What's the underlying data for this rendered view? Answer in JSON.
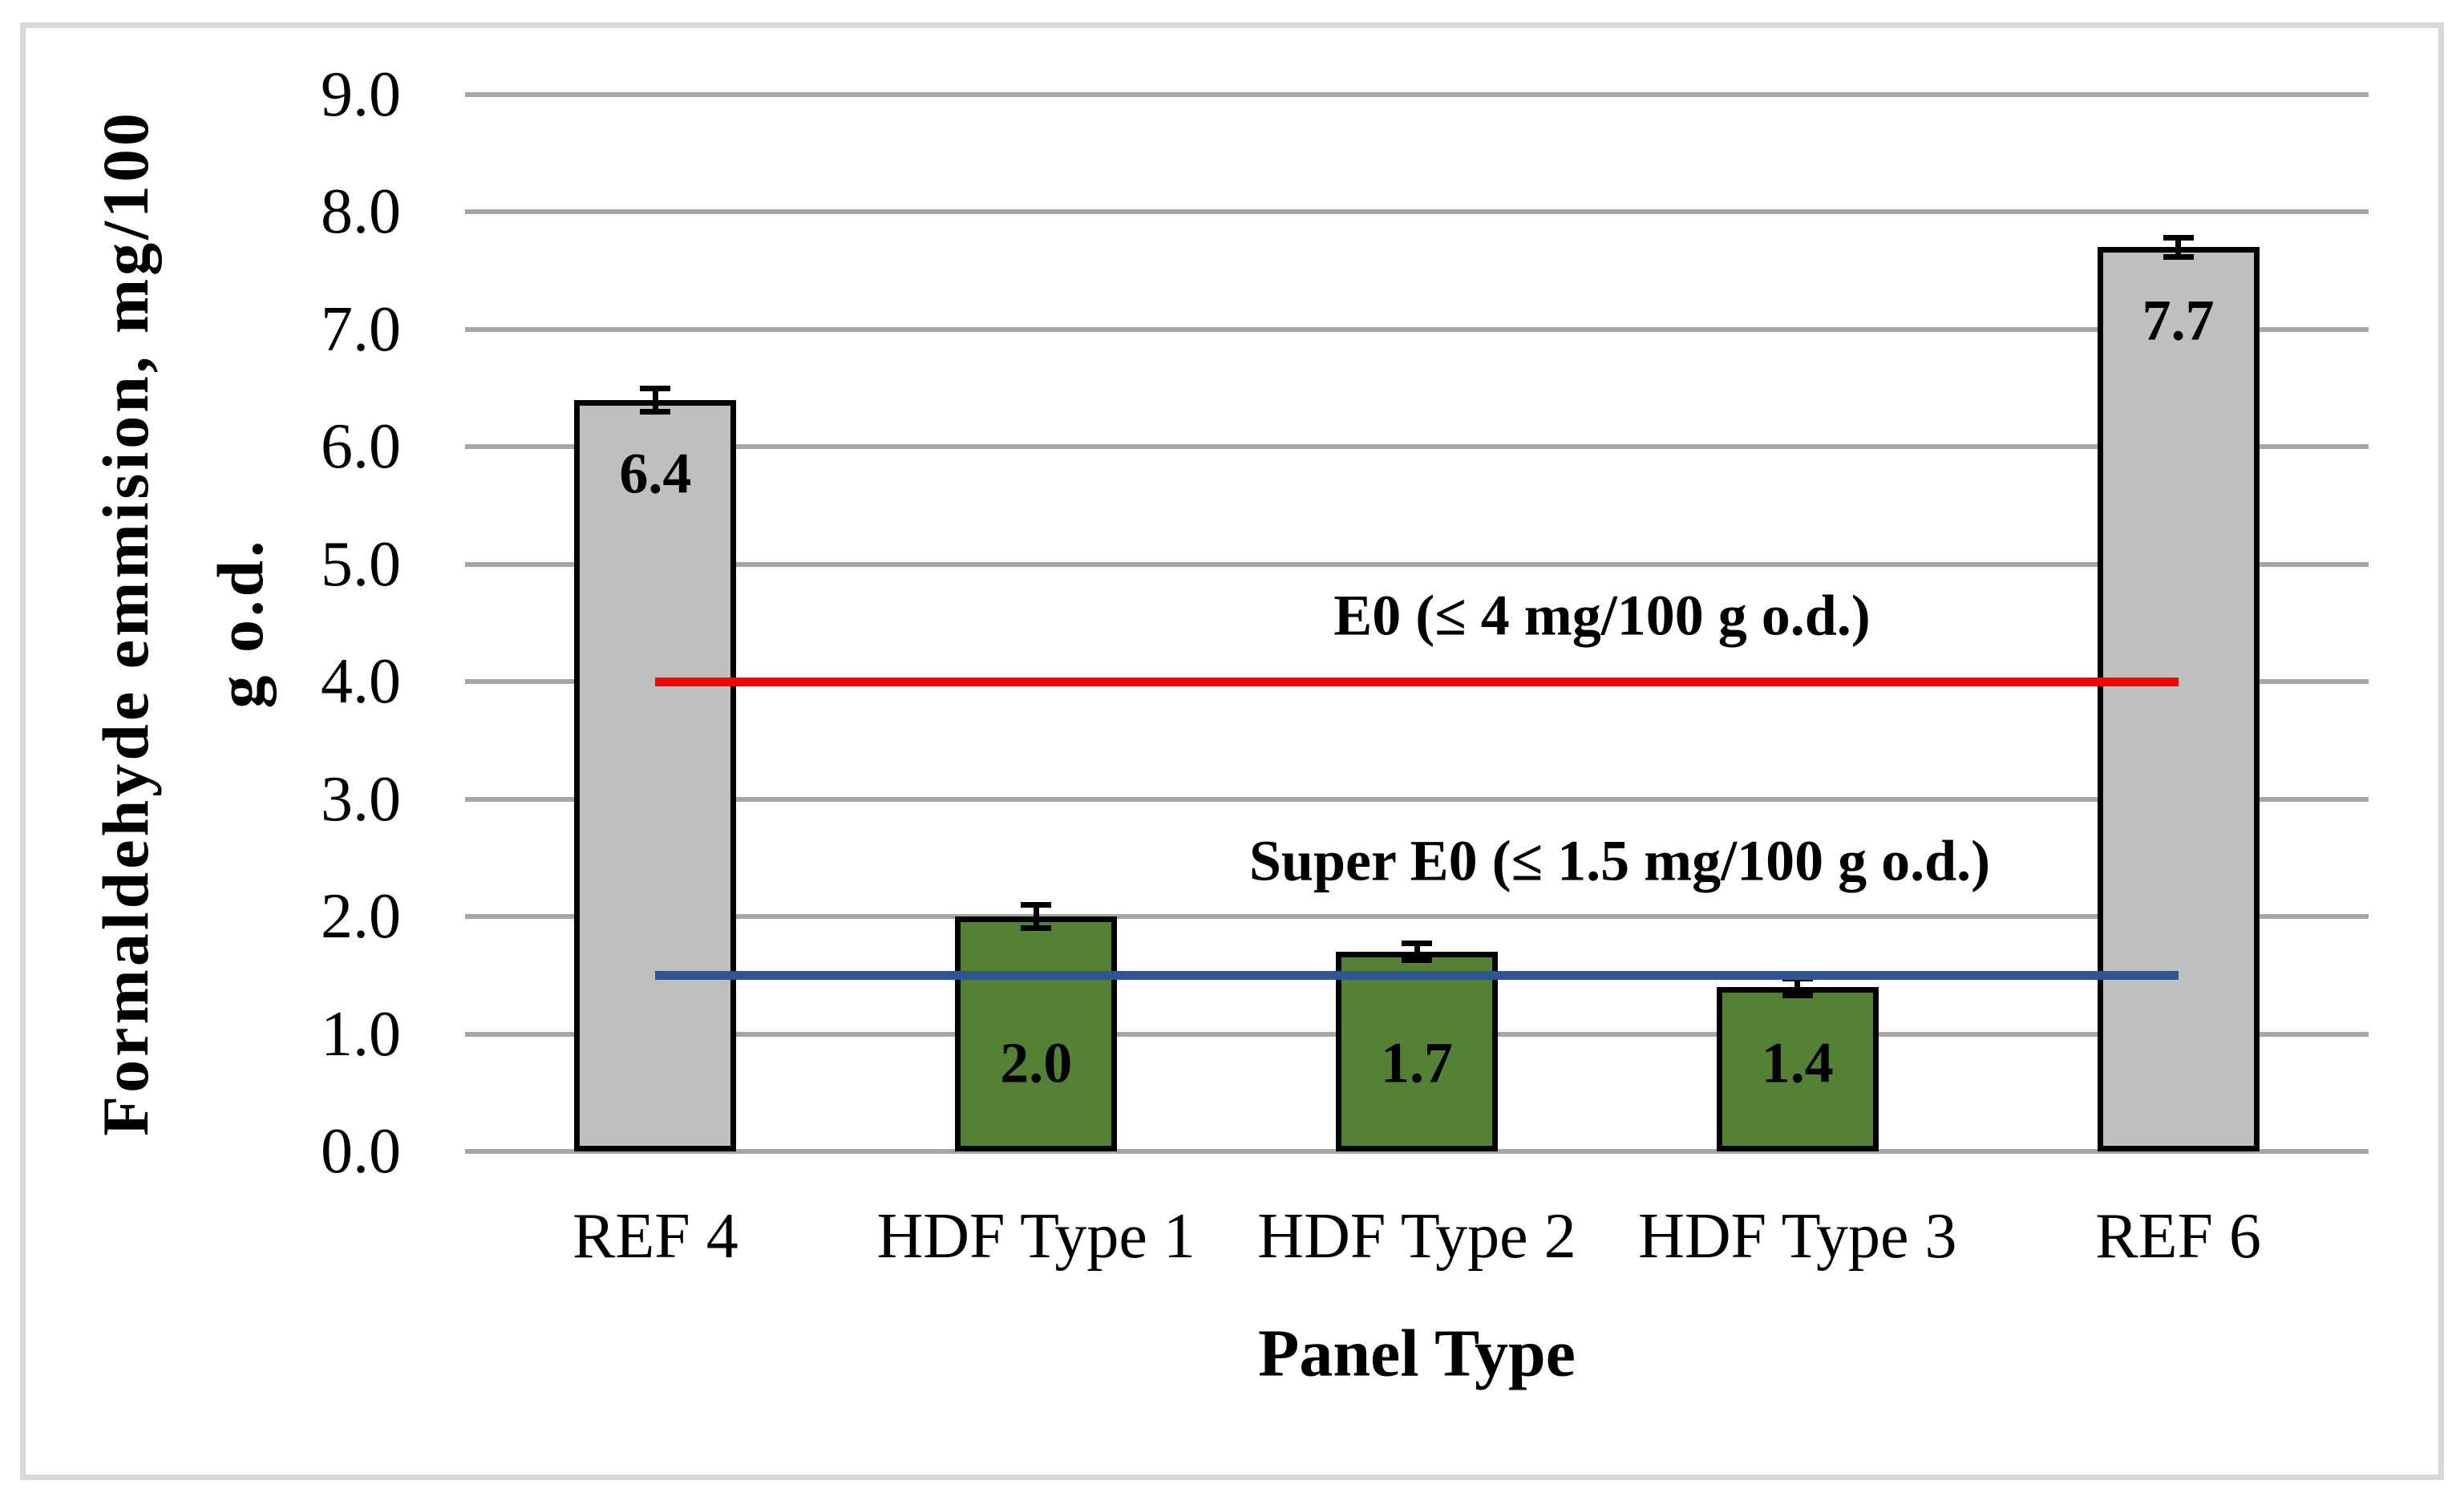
{
  "page": {
    "background": "#FFFFFF",
    "figure_border_color": "#D9D9D9"
  },
  "chart_data": {
    "type": "bar",
    "title": "",
    "xlabel": "Panel Type",
    "ylabel_line1": "Formaldehyde emmision, mg/100",
    "ylabel_line2": "g o.d.",
    "categories": [
      "REF 4",
      "HDF Type 1",
      "HDF Type 2",
      "HDF Type 3",
      "REF 6"
    ],
    "series": [
      {
        "name": "Formaldehyde emission",
        "values": [
          6.4,
          2.0,
          1.7,
          1.4,
          7.7
        ],
        "bar_labels": [
          "6.4",
          "2.0",
          "1.7",
          "1.4",
          "7.7"
        ],
        "error_bars": [
          0.1,
          0.1,
          0.07,
          0.07,
          0.08
        ],
        "bar_color_keys": [
          "reference",
          "hdf",
          "hdf",
          "hdf",
          "reference"
        ],
        "label_placement": [
          "inside-top",
          "inside-bottom",
          "inside-bottom",
          "inside-bottom",
          "inside-top"
        ]
      }
    ],
    "reference_lines": [
      {
        "label": "E0 (≤ 4 mg/100 g o.d.)",
        "value": 4.0,
        "color": "#FF0000"
      },
      {
        "label": "Super E0 (≤ 1.5 mg/100 g o.d.)",
        "value": 1.5,
        "color": "#2F5597"
      }
    ],
    "ylim": [
      0,
      9
    ],
    "ytick_step": 1.0,
    "ytick_labels": [
      "0.0",
      "1.0",
      "2.0",
      "3.0",
      "4.0",
      "5.0",
      "6.0",
      "7.0",
      "8.0",
      "9.0"
    ],
    "grid": "horizontal-major",
    "legend": "none",
    "colors": {
      "reference": "#BFBFBF",
      "hdf": "#548235",
      "bar_border": "#000000",
      "gridline": "#A6A6A6",
      "error_bar": "#000000",
      "text": "#000000"
    }
  }
}
